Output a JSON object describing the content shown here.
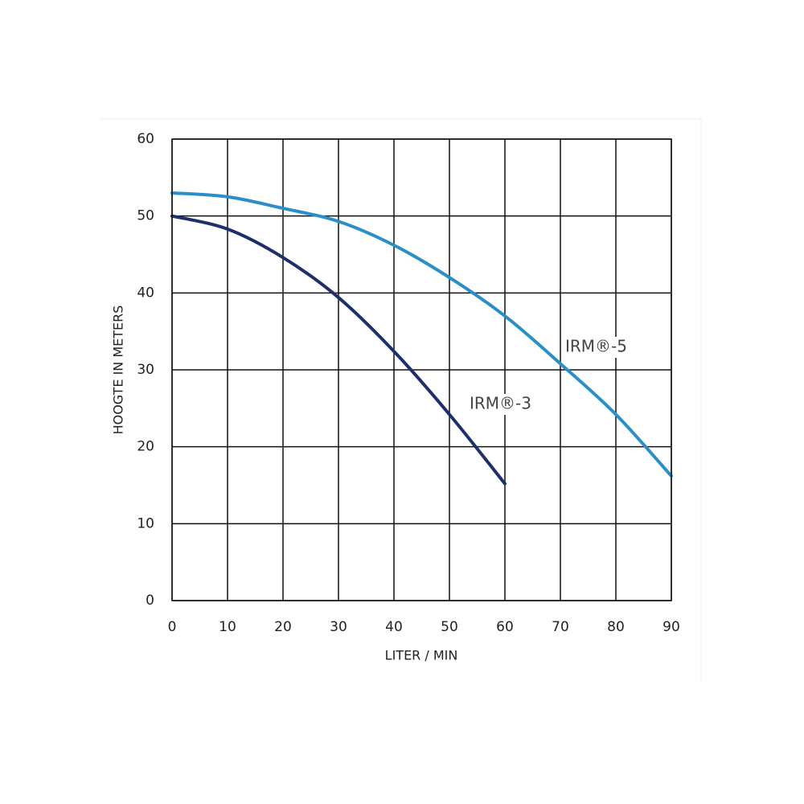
{
  "chart_data": {
    "type": "line",
    "x_label": "LITER / MIN",
    "y_label": "HOOGTE IN METERS",
    "xlim": [
      0,
      90
    ],
    "ylim": [
      0,
      60
    ],
    "xticks": [
      0,
      10,
      20,
      30,
      40,
      50,
      60,
      70,
      80,
      90
    ],
    "yticks": [
      0,
      10,
      20,
      30,
      40,
      50,
      60
    ],
    "grid": true,
    "series": [
      {
        "name": "IRM®-3",
        "color": "#1e2f6b",
        "x": [
          0,
          10,
          20,
          30,
          40,
          50,
          60
        ],
        "values": [
          50,
          48.3,
          44.6,
          39.4,
          32.4,
          24.2,
          15.2
        ]
      },
      {
        "name": "IRM®-5",
        "color": "#2a8fc8",
        "x": [
          0,
          10,
          20,
          30,
          40,
          50,
          60,
          70,
          80,
          90
        ],
        "values": [
          53,
          52.5,
          51,
          49.3,
          46.2,
          42,
          37,
          30.8,
          24.2,
          16.2
        ]
      }
    ]
  }
}
